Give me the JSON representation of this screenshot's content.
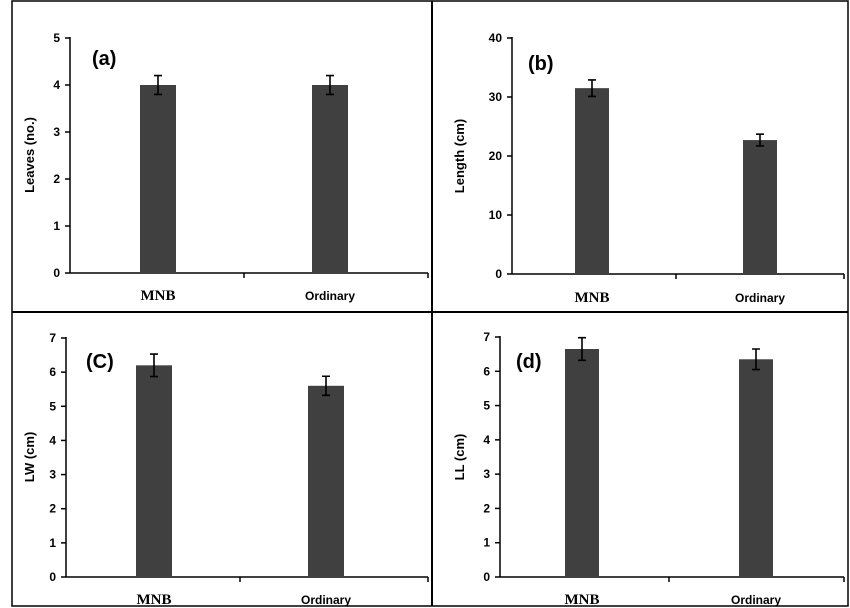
{
  "chart_data": [
    {
      "type": "bar",
      "panel_label": "(a)",
      "categories": [
        "MNB",
        "Ordinary"
      ],
      "values": [
        4.0,
        4.0
      ],
      "errors": [
        0.2,
        0.2
      ],
      "ylabel": "Leaves (no.)",
      "ylim": [
        0,
        5
      ],
      "yticks": [
        "0",
        "1",
        "2",
        "3",
        "4",
        "5"
      ],
      "grid": false,
      "bar_color": "#404040"
    },
    {
      "type": "bar",
      "panel_label": "(b)",
      "categories": [
        "MNB",
        "Ordinary"
      ],
      "values": [
        31.5,
        22.7
      ],
      "errors": [
        1.4,
        1.0
      ],
      "ylabel": "Length (cm)",
      "ylim": [
        0,
        40
      ],
      "yticks": [
        "0",
        "10",
        "20",
        "30",
        "40"
      ],
      "grid": false,
      "bar_color": "#404040"
    },
    {
      "type": "bar",
      "panel_label": "(C)",
      "categories": [
        "MNB",
        "Ordinary"
      ],
      "values": [
        6.2,
        5.6
      ],
      "errors": [
        0.33,
        0.28
      ],
      "ylabel": "LW (cm)",
      "ylim": [
        0,
        7
      ],
      "yticks": [
        "0",
        "1",
        "2",
        "3",
        "4",
        "5",
        "6",
        "7"
      ],
      "grid": false,
      "bar_color": "#404040"
    },
    {
      "type": "bar",
      "panel_label": "(d)",
      "categories": [
        "MNB",
        "Ordinary"
      ],
      "values": [
        6.65,
        6.35
      ],
      "errors": [
        0.33,
        0.3
      ],
      "ylabel": "LL (cm)",
      "ylim": [
        0,
        7
      ],
      "yticks": [
        "0",
        "1",
        "2",
        "3",
        "4",
        "5",
        "6",
        "7"
      ],
      "grid": false,
      "bar_color": "#404040"
    }
  ]
}
